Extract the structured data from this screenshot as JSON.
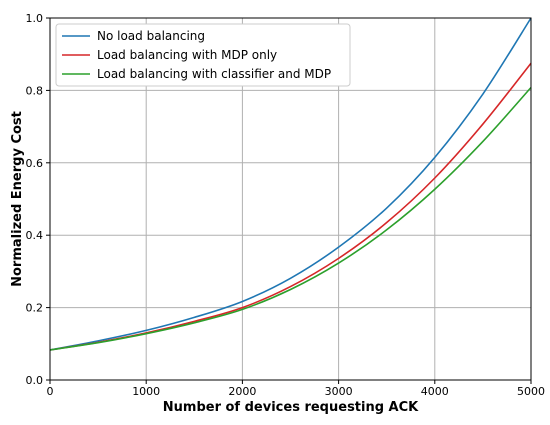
{
  "chart_data": {
    "type": "line",
    "title": "",
    "xlabel": "Number of devices requesting ACK",
    "ylabel": "Normalized Energy Cost",
    "xlim": [
      0,
      5000
    ],
    "ylim": [
      0,
      1.0
    ],
    "grid": true,
    "legend_position": "top-left",
    "x_ticks": [
      0,
      1000,
      2000,
      3000,
      4000,
      5000
    ],
    "y_ticks": [
      0.0,
      0.2,
      0.4,
      0.6,
      0.8,
      1.0
    ],
    "x_tick_labels": [
      "0",
      "1000",
      "2000",
      "3000",
      "4000",
      "5000"
    ],
    "y_tick_labels": [
      "0.0",
      "0.2",
      "0.4",
      "0.6",
      "0.8",
      "1.0"
    ],
    "x": [
      0,
      500,
      1000,
      1500,
      2000,
      2500,
      3000,
      3500,
      4000,
      4500,
      5000
    ],
    "series": [
      {
        "name": "No load balancing",
        "color": "#1f77b4",
        "values": [
          0.083,
          0.108,
          0.137,
          0.173,
          0.217,
          0.281,
          0.367,
          0.475,
          0.615,
          0.79,
          1.0
        ]
      },
      {
        "name": "Load balancing with MDP only",
        "color": "#d62728",
        "values": [
          0.083,
          0.104,
          0.13,
          0.162,
          0.2,
          0.258,
          0.336,
          0.435,
          0.558,
          0.707,
          0.875
        ]
      },
      {
        "name": "Load balancing with classifier and MDP",
        "color": "#2ca02c",
        "values": [
          0.083,
          0.103,
          0.128,
          0.158,
          0.195,
          0.25,
          0.323,
          0.415,
          0.527,
          0.659,
          0.808
        ]
      }
    ]
  }
}
